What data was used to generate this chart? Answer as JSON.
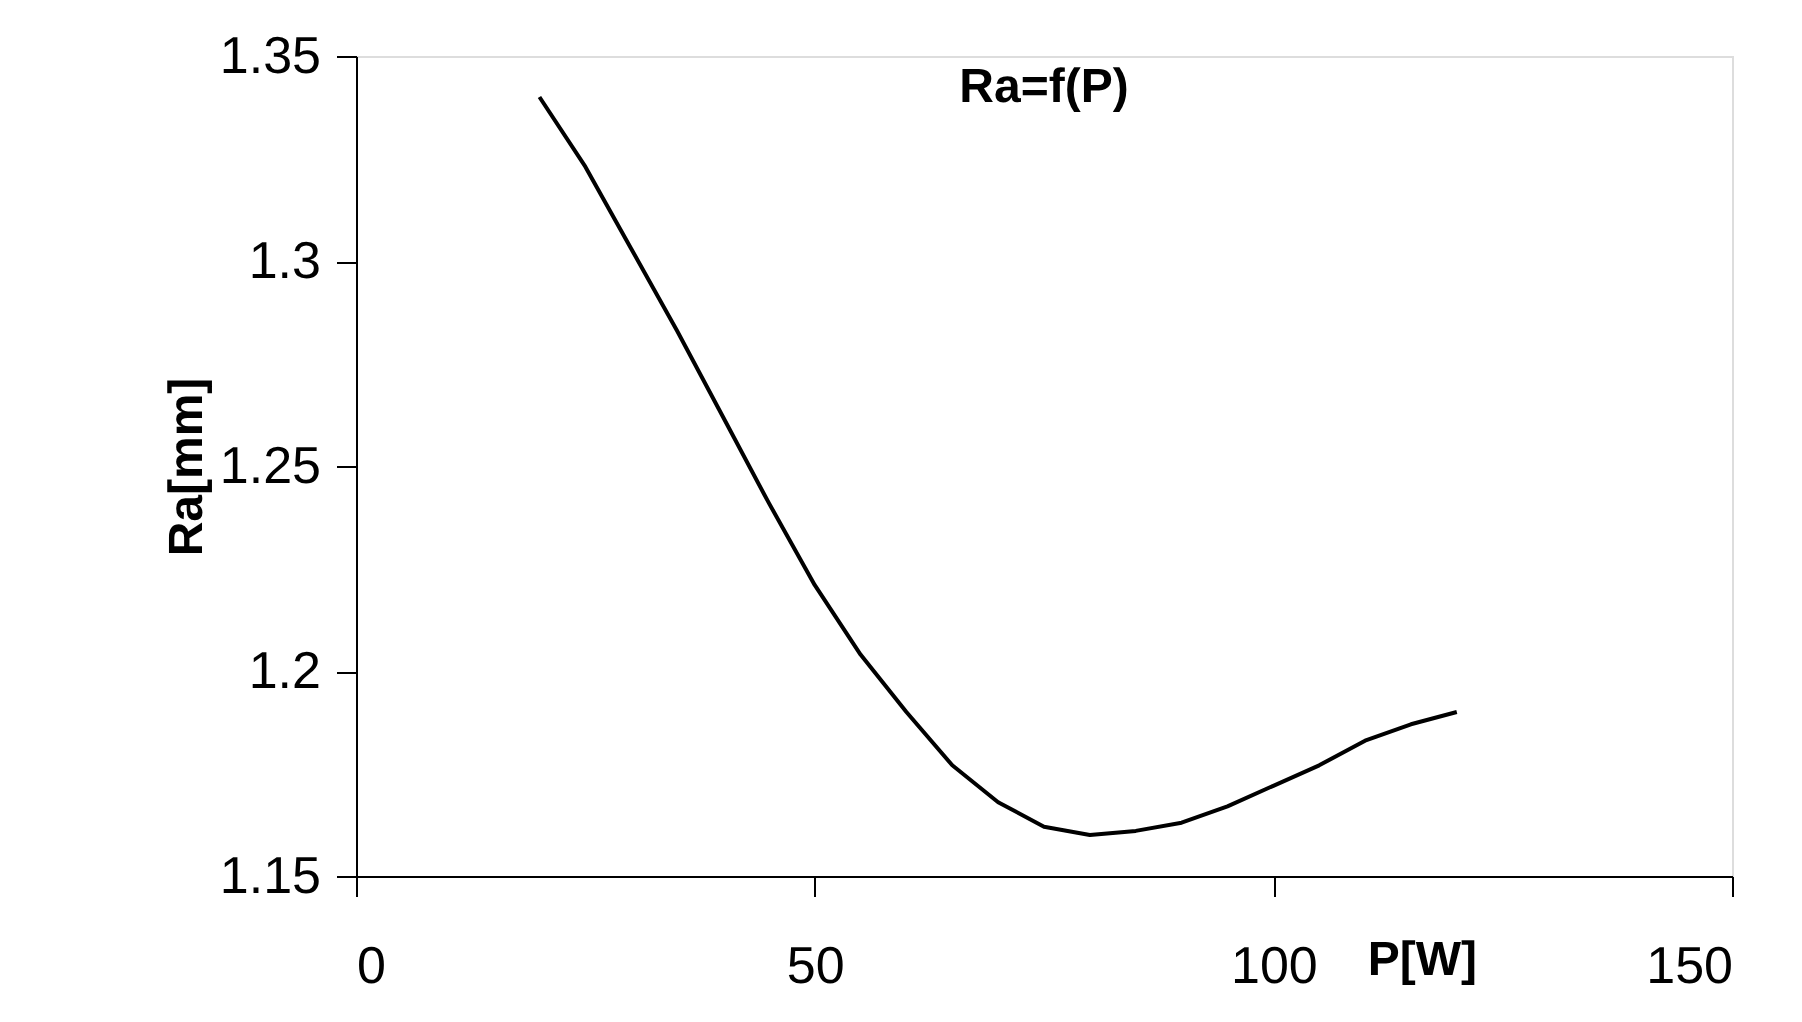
{
  "chart_data": {
    "type": "line",
    "title": "Ra=f(P)",
    "xlabel": "P[W]",
    "ylabel": "Ra[mm]",
    "xlim": [
      0,
      150
    ],
    "xticks": [
      0,
      50,
      100,
      150
    ],
    "ylim": [
      1.15,
      1.35
    ],
    "yticks": [
      1.15,
      1.2,
      1.25,
      1.3,
      1.35
    ],
    "grid": false,
    "legend": false,
    "marker": "none",
    "line_style": "solid",
    "series": [
      {
        "color": "#000000",
        "x": [
          20,
          25,
          30,
          35,
          40,
          45,
          50,
          55,
          60,
          65,
          70,
          75,
          80,
          85,
          90,
          95,
          100,
          105,
          110,
          115,
          120
        ],
        "values": [
          1.34,
          1.323,
          1.303,
          1.283,
          1.262,
          1.241,
          1.221,
          1.204,
          1.19,
          1.177,
          1.168,
          1.162,
          1.16,
          1.161,
          1.163,
          1.167,
          1.172,
          1.177,
          1.183,
          1.187,
          1.19
        ]
      }
    ]
  }
}
